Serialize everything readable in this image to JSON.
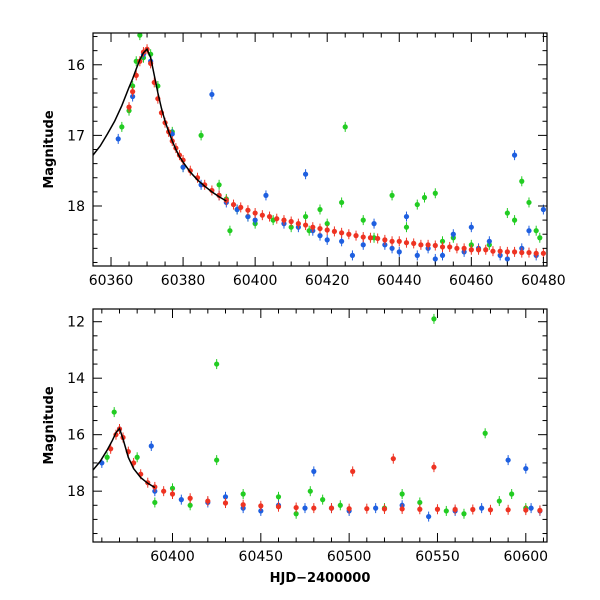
{
  "chart_data": [
    {
      "type": "scatter",
      "panel": "top",
      "xlabel": "",
      "ylabel": "Magnitude",
      "xlim": [
        60355,
        60481
      ],
      "ylim": [
        18.85,
        15.55
      ],
      "y_inverted": true,
      "xticks_major": [
        60360,
        60380,
        60400,
        60420,
        60440,
        60460,
        60480
      ],
      "xtick_labels": [
        "60360",
        "60380",
        "60400",
        "60420",
        "60440",
        "60460",
        "60480"
      ],
      "yticks_major": [
        16,
        17,
        18
      ],
      "ytick_labels": [
        "16",
        "17",
        "18"
      ],
      "grid": false,
      "legend": "none",
      "series": [
        {
          "color": "#22cc22",
          "points": [
            [
              60363,
              16.88
            ],
            [
              60365,
              16.65
            ],
            [
              60366,
              16.3
            ],
            [
              60367,
              15.95
            ],
            [
              60368,
              15.58
            ],
            [
              60369,
              15.9
            ],
            [
              60371,
              15.85
            ],
            [
              60373,
              16.3
            ],
            [
              60377,
              16.95
            ],
            [
              60380,
              17.45
            ],
            [
              60385,
              17.0
            ],
            [
              60390,
              17.7
            ],
            [
              60392,
              17.9
            ],
            [
              60393,
              18.35
            ],
            [
              60395,
              18.05
            ],
            [
              60398,
              18.15
            ],
            [
              60400,
              18.25
            ],
            [
              60405,
              18.2
            ],
            [
              60410,
              18.3
            ],
            [
              60414,
              18.15
            ],
            [
              60415,
              18.35
            ],
            [
              60418,
              18.05
            ],
            [
              60420,
              18.25
            ],
            [
              60424,
              17.95
            ],
            [
              60425,
              16.88
            ],
            [
              60430,
              18.2
            ],
            [
              60433,
              18.45
            ],
            [
              60438,
              17.85
            ],
            [
              60442,
              18.3
            ],
            [
              60445,
              17.98
            ],
            [
              60447,
              17.88
            ],
            [
              60450,
              17.82
            ],
            [
              60452,
              18.5
            ],
            [
              60455,
              18.45
            ],
            [
              60460,
              18.55
            ],
            [
              60465,
              18.55
            ],
            [
              60470,
              18.1
            ],
            [
              60472,
              18.2
            ],
            [
              60474,
              17.65
            ],
            [
              60476,
              17.95
            ],
            [
              60478,
              18.35
            ],
            [
              60479,
              18.45
            ]
          ]
        },
        {
          "color": "#1e5fe0",
          "points": [
            [
              60362,
              17.05
            ],
            [
              60366,
              16.45
            ],
            [
              60369,
              15.85
            ],
            [
              60371,
              15.95
            ],
            [
              60377,
              16.98
            ],
            [
              60380,
              17.45
            ],
            [
              60385,
              17.7
            ],
            [
              60388,
              16.42
            ],
            [
              60390,
              17.85
            ],
            [
              60392,
              17.95
            ],
            [
              60395,
              18.05
            ],
            [
              60398,
              18.15
            ],
            [
              60400,
              18.2
            ],
            [
              60403,
              17.85
            ],
            [
              60408,
              18.25
            ],
            [
              60412,
              18.3
            ],
            [
              60414,
              17.55
            ],
            [
              60416,
              18.35
            ],
            [
              60418,
              18.42
            ],
            [
              60420,
              18.48
            ],
            [
              60424,
              18.5
            ],
            [
              60427,
              18.7
            ],
            [
              60430,
              18.55
            ],
            [
              60433,
              18.25
            ],
            [
              60436,
              18.55
            ],
            [
              60438,
              18.6
            ],
            [
              60440,
              18.65
            ],
            [
              60442,
              18.15
            ],
            [
              60445,
              18.7
            ],
            [
              60448,
              18.6
            ],
            [
              60450,
              18.75
            ],
            [
              60452,
              18.7
            ],
            [
              60455,
              18.4
            ],
            [
              60458,
              18.65
            ],
            [
              60460,
              18.3
            ],
            [
              60462,
              18.6
            ],
            [
              60465,
              18.5
            ],
            [
              60468,
              18.7
            ],
            [
              60470,
              18.75
            ],
            [
              60472,
              17.28
            ],
            [
              60474,
              18.6
            ],
            [
              60476,
              18.35
            ],
            [
              60478,
              18.7
            ],
            [
              60480,
              18.05
            ]
          ]
        },
        {
          "color": "#ee3322",
          "points": [
            [
              60365,
              16.6
            ],
            [
              60366,
              16.38
            ],
            [
              60367,
              16.15
            ],
            [
              60368,
              15.95
            ],
            [
              60369,
              15.82
            ],
            [
              60370,
              15.78
            ],
            [
              60371,
              15.98
            ],
            [
              60372,
              16.25
            ],
            [
              60373,
              16.48
            ],
            [
              60374,
              16.68
            ],
            [
              60375,
              16.82
            ],
            [
              60376,
              16.95
            ],
            [
              60377,
              17.08
            ],
            [
              60378,
              17.18
            ],
            [
              60379,
              17.28
            ],
            [
              60380,
              17.35
            ],
            [
              60382,
              17.5
            ],
            [
              60384,
              17.6
            ],
            [
              60386,
              17.7
            ],
            [
              60388,
              17.78
            ],
            [
              60390,
              17.85
            ],
            [
              60392,
              17.92
            ],
            [
              60394,
              17.98
            ],
            [
              60396,
              18.02
            ],
            [
              60398,
              18.06
            ],
            [
              60400,
              18.1
            ],
            [
              60402,
              18.13
            ],
            [
              60404,
              18.15
            ],
            [
              60406,
              18.18
            ],
            [
              60408,
              18.2
            ],
            [
              60410,
              18.22
            ],
            [
              60412,
              18.25
            ],
            [
              60414,
              18.27
            ],
            [
              60416,
              18.3
            ],
            [
              60418,
              18.32
            ],
            [
              60420,
              18.34
            ],
            [
              60422,
              18.36
            ],
            [
              60424,
              18.38
            ],
            [
              60426,
              18.4
            ],
            [
              60428,
              18.42
            ],
            [
              60430,
              18.44
            ],
            [
              60432,
              18.45
            ],
            [
              60434,
              18.46
            ],
            [
              60436,
              18.48
            ],
            [
              60438,
              18.5
            ],
            [
              60440,
              18.5
            ],
            [
              60442,
              18.52
            ],
            [
              60444,
              18.53
            ],
            [
              60446,
              18.55
            ],
            [
              60448,
              18.55
            ],
            [
              60450,
              18.56
            ],
            [
              60452,
              18.58
            ],
            [
              60454,
              18.58
            ],
            [
              60456,
              18.6
            ],
            [
              60458,
              18.6
            ],
            [
              60460,
              18.62
            ],
            [
              60462,
              18.62
            ],
            [
              60464,
              18.62
            ],
            [
              60466,
              18.64
            ],
            [
              60468,
              18.64
            ],
            [
              60470,
              18.65
            ],
            [
              60472,
              18.65
            ],
            [
              60474,
              18.66
            ],
            [
              60476,
              18.66
            ],
            [
              60478,
              18.67
            ],
            [
              60480,
              18.67
            ]
          ]
        }
      ],
      "model_curve": {
        "color": "#000000",
        "x": [
          60355,
          60357,
          60359,
          60361,
          60363,
          60365,
          60366,
          60367,
          60368,
          60369,
          60370,
          60371,
          60372,
          60373,
          60374,
          60375,
          60376,
          60377,
          60378,
          60379,
          60380,
          60382,
          60384,
          60386,
          60388,
          60390,
          60392
        ],
        "y": [
          17.28,
          17.15,
          16.98,
          16.8,
          16.58,
          16.32,
          16.2,
          16.06,
          15.93,
          15.83,
          15.78,
          15.9,
          16.15,
          16.4,
          16.62,
          16.8,
          16.95,
          17.08,
          17.2,
          17.3,
          17.38,
          17.52,
          17.63,
          17.72,
          17.8,
          17.87,
          17.93
        ]
      }
    },
    {
      "type": "scatter",
      "panel": "bottom",
      "xlabel": "HJD−2400000",
      "ylabel": "Magnitude",
      "xlim": [
        60355,
        60612
      ],
      "ylim": [
        19.8,
        11.55
      ],
      "y_inverted": true,
      "xticks_major": [
        60400,
        60450,
        60500,
        60550,
        60600
      ],
      "xtick_labels": [
        "60400",
        "60450",
        "60500",
        "60550",
        "60600"
      ],
      "yticks_major": [
        12,
        14,
        16,
        18
      ],
      "ytick_labels": [
        "12",
        "14",
        "16",
        "18"
      ],
      "grid": false,
      "legend": "none",
      "series": [
        {
          "color": "#22cc22",
          "points": [
            [
              60363,
              16.8
            ],
            [
              60367,
              15.2
            ],
            [
              60380,
              16.8
            ],
            [
              60390,
              18.4
            ],
            [
              60400,
              17.9
            ],
            [
              60410,
              18.5
            ],
            [
              60425,
              13.5
            ],
            [
              60425,
              16.9
            ],
            [
              60440,
              18.1
            ],
            [
              60460,
              18.2
            ],
            [
              60470,
              18.8
            ],
            [
              60478,
              18.0
            ],
            [
              60485,
              18.3
            ],
            [
              60495,
              18.5
            ],
            [
              60520,
              18.6
            ],
            [
              60530,
              18.1
            ],
            [
              60540,
              18.4
            ],
            [
              60548,
              11.9
            ],
            [
              60555,
              18.7
            ],
            [
              60565,
              18.8
            ],
            [
              60577,
              15.95
            ],
            [
              60585,
              18.35
            ],
            [
              60592,
              18.1
            ],
            [
              60600,
              18.6
            ]
          ]
        },
        {
          "color": "#1e5fe0",
          "points": [
            [
              60360,
              17.0
            ],
            [
              60370,
              15.8
            ],
            [
              60388,
              16.4
            ],
            [
              60390,
              18.0
            ],
            [
              60405,
              18.3
            ],
            [
              60420,
              18.4
            ],
            [
              60430,
              18.2
            ],
            [
              60440,
              18.6
            ],
            [
              60450,
              18.7
            ],
            [
              60460,
              18.5
            ],
            [
              60475,
              18.6
            ],
            [
              60480,
              17.3
            ],
            [
              60490,
              18.6
            ],
            [
              60500,
              18.7
            ],
            [
              60515,
              18.6
            ],
            [
              60530,
              18.5
            ],
            [
              60545,
              18.9
            ],
            [
              60560,
              18.7
            ],
            [
              60575,
              18.6
            ],
            [
              60590,
              16.9
            ],
            [
              60600,
              17.2
            ],
            [
              60603,
              18.6
            ],
            [
              60608,
              18.7
            ]
          ]
        },
        {
          "color": "#ee3322",
          "points": [
            [
              60365,
              16.5
            ],
            [
              60368,
              16.0
            ],
            [
              60370,
              15.8
            ],
            [
              60372,
              16.1
            ],
            [
              60375,
              16.6
            ],
            [
              60378,
              17.0
            ],
            [
              60382,
              17.4
            ],
            [
              60386,
              17.7
            ],
            [
              60390,
              17.85
            ],
            [
              60395,
              18.0
            ],
            [
              60400,
              18.1
            ],
            [
              60410,
              18.25
            ],
            [
              60420,
              18.35
            ],
            [
              60430,
              18.42
            ],
            [
              60440,
              18.48
            ],
            [
              60450,
              18.52
            ],
            [
              60460,
              18.55
            ],
            [
              60470,
              18.58
            ],
            [
              60480,
              18.6
            ],
            [
              60490,
              18.6
            ],
            [
              60500,
              18.62
            ],
            [
              60502,
              17.3
            ],
            [
              60510,
              18.62
            ],
            [
              60520,
              18.63
            ],
            [
              60525,
              16.85
            ],
            [
              60530,
              18.63
            ],
            [
              60540,
              18.64
            ],
            [
              60548,
              17.15
            ],
            [
              60550,
              18.64
            ],
            [
              60560,
              18.65
            ],
            [
              60570,
              18.65
            ],
            [
              60580,
              18.66
            ],
            [
              60590,
              18.66
            ],
            [
              60600,
              18.67
            ],
            [
              60608,
              18.68
            ]
          ]
        }
      ],
      "model_curve": {
        "color": "#000000",
        "x": [
          60355,
          60359,
          60363,
          60366,
          60368,
          60370,
          60372,
          60375,
          60378,
          60382,
          60386,
          60390
        ],
        "y": [
          17.25,
          16.95,
          16.55,
          16.2,
          15.93,
          15.78,
          16.15,
          16.8,
          17.2,
          17.52,
          17.72,
          17.87
        ]
      }
    }
  ]
}
